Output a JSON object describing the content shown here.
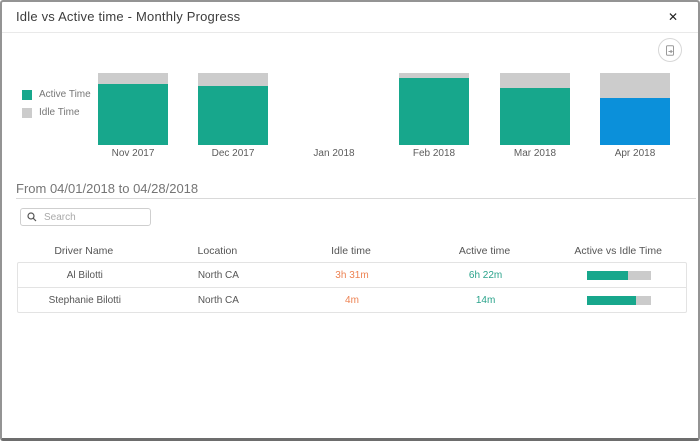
{
  "window": {
    "title": "Idle vs Active time - Monthly Progress",
    "close_icon": "✕"
  },
  "icons": {
    "close": "close-icon",
    "export": "export-image-icon",
    "search": "search-icon"
  },
  "colors": {
    "active": "#17a78c",
    "idle": "#cccccc",
    "selected_month": "#0b90da",
    "idle_text": "#ed8353",
    "active_text": "#2aa38b"
  },
  "chart_data": {
    "type": "bar",
    "stacked": true,
    "categories": [
      "Nov 2017",
      "Dec 2017",
      "Jan 2018",
      "Feb 2018",
      "Mar 2018",
      "Apr 2018"
    ],
    "series": [
      {
        "name": "Active Time",
        "color": "#17a78c",
        "values": [
          85,
          82,
          0,
          93,
          79,
          65
        ]
      },
      {
        "name": "Idle Time",
        "color": "#cccccc",
        "values": [
          15,
          18,
          0,
          7,
          21,
          35
        ]
      }
    ],
    "selected_index": 5,
    "selected_active_color": "#0b90da",
    "ylim": [
      0,
      100
    ],
    "legend_position": "left",
    "grid": false
  },
  "period_label": "From 04/01/2018 to 04/28/2018",
  "search": {
    "placeholder": "Search"
  },
  "table": {
    "columns": [
      "Driver Name",
      "Location",
      "Idle time",
      "Active time",
      "Active vs Idle Time"
    ],
    "rows": [
      {
        "driver": "Al Bilotti",
        "location": "North CA",
        "idle": "3h 31m",
        "active": "6h 22m",
        "active_pct": 64
      },
      {
        "driver": "Stephanie Bilotti",
        "location": "North CA",
        "idle": "4m",
        "active": "14m",
        "active_pct": 77
      }
    ]
  }
}
